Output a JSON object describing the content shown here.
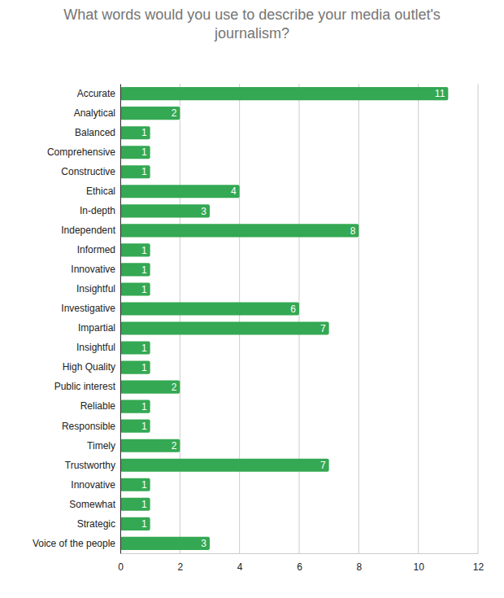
{
  "chart_data": {
    "type": "bar",
    "orientation": "horizontal",
    "title": "What words would you use to describe your media outlet's journalism?",
    "categories": [
      "Accurate",
      "Analytical",
      "Balanced",
      "Comprehensive",
      "Constructive",
      "Ethical",
      "In-depth",
      "Independent",
      "Informed",
      "Innovative",
      "Insightful",
      "Investigative",
      "Impartial",
      "Insightful",
      "High Quality",
      "Public interest",
      "Reliable",
      "Responsible",
      "Timely",
      "Trustworthy",
      "Innovative",
      "Somewhat",
      "Strategic",
      "Voice of the people"
    ],
    "values": [
      11,
      2,
      1,
      1,
      1,
      4,
      3,
      8,
      1,
      1,
      1,
      6,
      7,
      1,
      1,
      2,
      1,
      1,
      2,
      7,
      1,
      1,
      1,
      3
    ],
    "color": "#34a853",
    "xlim": [
      0,
      12
    ],
    "xticks": [
      0,
      2,
      4,
      6,
      8,
      10,
      12
    ],
    "grid": true,
    "data_labels": true
  }
}
